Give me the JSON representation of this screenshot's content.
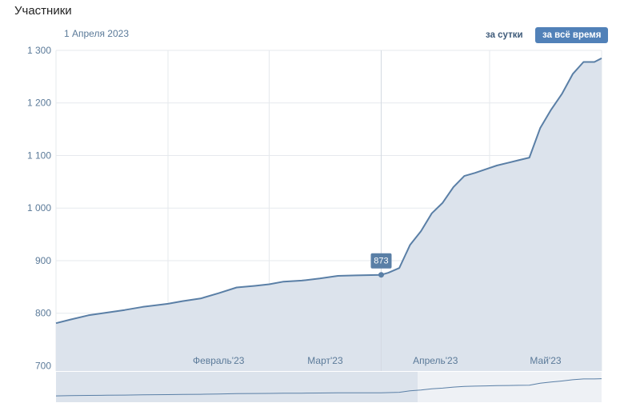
{
  "header": {
    "title": "Участники",
    "hover_date": "1 Апреля 2023",
    "range_buttons": {
      "day": "за сутки",
      "all_time": "за всё время"
    }
  },
  "colors": {
    "line": "#5a7fa6",
    "area": "#dce3ec",
    "grid": "#e6e9ed",
    "accent": "#5181b8"
  },
  "tooltip": {
    "value": "873"
  },
  "chart_data": {
    "type": "area",
    "title": "Участники",
    "ylim": [
      690,
      1300
    ],
    "yticks": [
      700,
      800,
      900,
      1000,
      1100,
      1200,
      1300
    ],
    "ytick_labels": [
      "700",
      "800",
      "900",
      "1 000",
      "1 100",
      "1 200",
      "1 300"
    ],
    "xlim": [
      "2023-01-01",
      "2023-06-01"
    ],
    "xtick_labels": [
      "Февраль'23",
      "Март'23",
      "Апрель'23",
      "Май'23"
    ],
    "xtick_dates": [
      "2023-02-01",
      "2023-03-01",
      "2023-04-01",
      "2023-05-01"
    ],
    "highlight": {
      "x": "2023-04-01",
      "y": 873
    },
    "series": [
      {
        "x": [
          "2023-01-01",
          "2023-01-05",
          "2023-01-10",
          "2023-01-15",
          "2023-01-20",
          "2023-01-25",
          "2023-02-01",
          "2023-02-05",
          "2023-02-10",
          "2023-02-15",
          "2023-02-20",
          "2023-02-25",
          "2023-03-01",
          "2023-03-05",
          "2023-03-10",
          "2023-03-15",
          "2023-03-20",
          "2023-03-25",
          "2023-04-01",
          "2023-04-03",
          "2023-04-06",
          "2023-04-09",
          "2023-04-12",
          "2023-04-15",
          "2023-04-18",
          "2023-04-21",
          "2023-04-24",
          "2023-04-27",
          "2023-04-30",
          "2023-05-03",
          "2023-05-06",
          "2023-05-09",
          "2023-05-12",
          "2023-05-15",
          "2023-05-18",
          "2023-05-21",
          "2023-05-24",
          "2023-05-27",
          "2023-05-30",
          "2023-06-01"
        ],
        "values": [
          781,
          788,
          796,
          801,
          806,
          812,
          818,
          823,
          828,
          838,
          849,
          852,
          855,
          860,
          862,
          866,
          871,
          872,
          873,
          877,
          886,
          930,
          956,
          990,
          1010,
          1040,
          1061,
          1067,
          1074,
          1081,
          1086,
          1091,
          1096,
          1152,
          1187,
          1217,
          1255,
          1278,
          1278,
          1285
        ]
      }
    ]
  }
}
